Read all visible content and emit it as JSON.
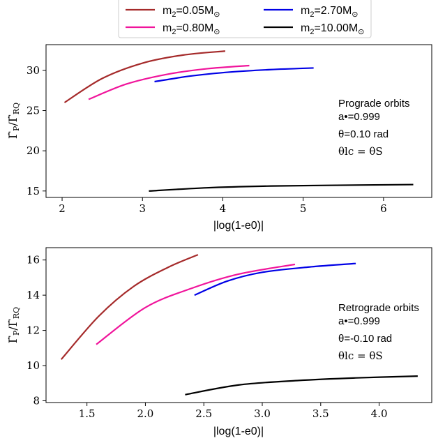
{
  "legend": {
    "placement": "top-center",
    "entries": [
      {
        "series": "m2=0.05Msun",
        "color": "#a52a2a"
      },
      {
        "series": "m2=2.70Msun",
        "color": "#0000e6"
      },
      {
        "series": "m2=0.80Msun",
        "color": "#f0149b"
      },
      {
        "series": "m2=10.00Msun",
        "color": "#000000"
      }
    ]
  },
  "chart_data": [
    {
      "type": "line",
      "xlabel": "|log(1-e0)|",
      "ylabel": "ΓP/ΓRQ",
      "xlim": [
        1.8,
        6.6
      ],
      "ylim": [
        14.2,
        33.2
      ],
      "xticks": [
        "2",
        "3",
        "4",
        "5",
        "6"
      ],
      "yticks": [
        "15",
        "20",
        "25",
        "30"
      ],
      "annotation": {
        "line1": "Prograde orbits",
        "line2": "a•=0.999",
        "line3": "θ=0.10 rad",
        "line4": "θlc = θS"
      },
      "series": [
        {
          "color": "#a52a2a",
          "x": [
            2.03,
            2.5,
            3.0,
            3.5,
            4.03
          ],
          "y": [
            26.0,
            29.0,
            30.9,
            31.9,
            32.4
          ]
        },
        {
          "color": "#f0149b",
          "x": [
            2.33,
            2.8,
            3.3,
            3.8,
            4.33
          ],
          "y": [
            26.4,
            28.3,
            29.5,
            30.2,
            30.6
          ]
        },
        {
          "color": "#0000e6",
          "x": [
            3.15,
            3.6,
            4.1,
            4.6,
            5.13
          ],
          "y": [
            28.6,
            29.3,
            29.8,
            30.1,
            30.3
          ]
        },
        {
          "color": "#000000",
          "x": [
            3.08,
            3.8,
            4.5,
            5.3,
            6.37
          ],
          "y": [
            15.0,
            15.4,
            15.6,
            15.7,
            15.8
          ]
        }
      ]
    },
    {
      "type": "line",
      "xlabel": "|log(1-e0)|",
      "ylabel": "ΓP/ΓRQ",
      "xlim": [
        1.15,
        4.45
      ],
      "ylim": [
        7.9,
        16.7
      ],
      "xticks": [
        "1.5",
        "2.0",
        "2.5",
        "3.0",
        "3.5",
        "4.0"
      ],
      "yticks": [
        "8",
        "10",
        "12",
        "14",
        "16"
      ],
      "annotation": {
        "line1": "Retrograde orbits",
        "line2": "a•=0.999",
        "line3": "θ=-0.10 rad",
        "line4": "θlc = θS"
      },
      "series": [
        {
          "color": "#a52a2a",
          "x": [
            1.28,
            1.6,
            1.9,
            2.2,
            2.45
          ],
          "y": [
            10.35,
            12.8,
            14.5,
            15.6,
            16.3
          ]
        },
        {
          "color": "#f0149b",
          "x": [
            1.58,
            2.0,
            2.4,
            2.8,
            3.28
          ],
          "y": [
            11.2,
            13.3,
            14.4,
            15.2,
            15.75
          ]
        },
        {
          "color": "#0000e6",
          "x": [
            2.42,
            2.7,
            3.0,
            3.4,
            3.8
          ],
          "y": [
            14.0,
            14.8,
            15.3,
            15.6,
            15.8
          ]
        },
        {
          "color": "#000000",
          "x": [
            2.34,
            2.8,
            3.3,
            3.8,
            4.33
          ],
          "y": [
            8.35,
            8.9,
            9.15,
            9.3,
            9.4
          ]
        }
      ]
    }
  ]
}
